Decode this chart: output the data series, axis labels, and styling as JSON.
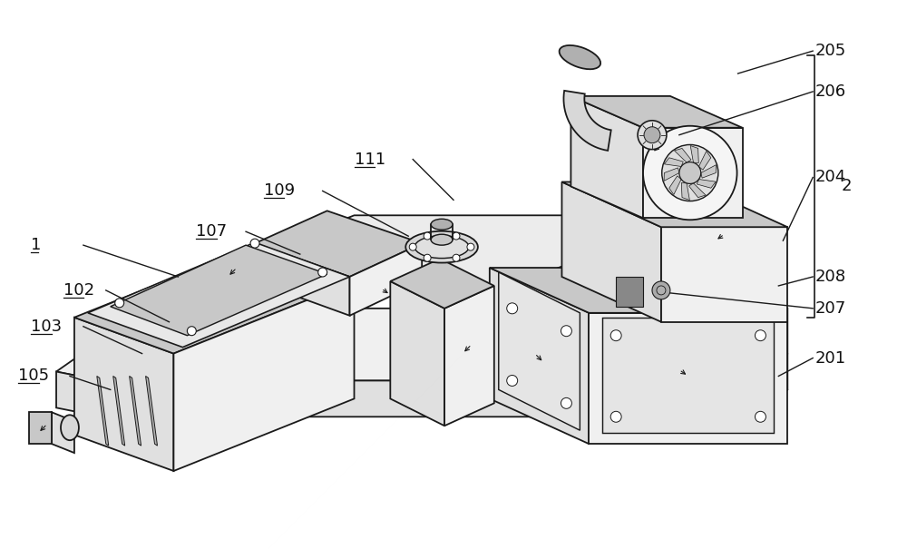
{
  "fig_width": 10.0,
  "fig_height": 6.05,
  "dpi": 100,
  "bg_color": "#ffffff",
  "lc": "#1a1a1a",
  "lw": 1.3,
  "gray_light": "#f0f0f0",
  "gray_mid": "#e0e0e0",
  "gray_dark": "#c8c8c8",
  "gray_darker": "#b0b0b0"
}
